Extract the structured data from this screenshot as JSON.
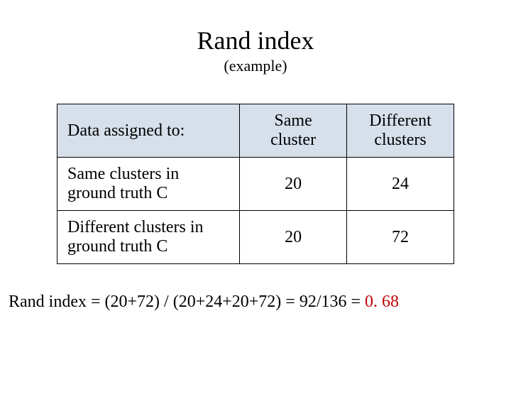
{
  "slide": {
    "title": "Rand index",
    "subtitle": "(example)",
    "background_color": "#ffffff",
    "text_color": "#000000",
    "highlight_color": "#c00000",
    "font_family": "Times New Roman"
  },
  "table": {
    "type": "table",
    "header_bg_color": "#d6dfea",
    "border_color": "#000000",
    "columns": [
      {
        "label": "Data assigned to:",
        "width_pct": 46,
        "align": "left"
      },
      {
        "label": "Same cluster",
        "width_pct": 27,
        "align": "center"
      },
      {
        "label": "Different clusters",
        "width_pct": 27,
        "align": "center"
      }
    ],
    "rows": [
      {
        "label": "Same clusters in ground truth C",
        "values": [
          20,
          24
        ]
      },
      {
        "label": "Different clusters in ground truth C",
        "values": [
          20,
          72
        ]
      }
    ],
    "title_fontsize": 36,
    "subtitle_fontsize": 22,
    "cell_fontsize": 24
  },
  "formula": {
    "prefix": "Rand index  = (20+72) / (20+24+20+72) = 92/136 = ",
    "result": "0. 68",
    "fontsize": 24
  }
}
